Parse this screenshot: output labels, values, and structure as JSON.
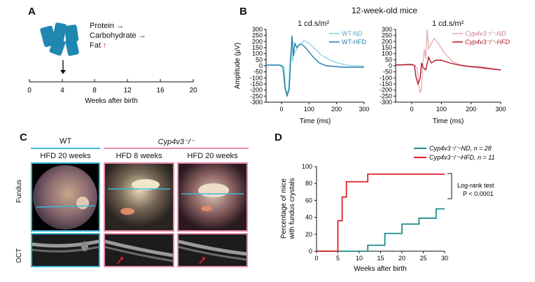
{
  "panels": {
    "a": "A",
    "b": "B",
    "c": "C",
    "d": "D"
  },
  "panel_a": {
    "nutrients": [
      {
        "label": "Protein",
        "arrow": "→",
        "arrow_color": "#000000"
      },
      {
        "label": "Carbohydrate",
        "arrow": "→",
        "arrow_color": "#000000"
      },
      {
        "label": "Fat",
        "arrow": "↑",
        "arrow_color": "#e0202a"
      }
    ],
    "timeline_ticks": [
      "0",
      "4",
      "8",
      "12",
      "16",
      "20"
    ],
    "xlabel": "Weeks after birth"
  },
  "panel_b": {
    "title": "12-week-old mice",
    "left": {
      "stimulus": "1 cd.s/m²",
      "legend": [
        {
          "name": "WT-ND",
          "color": "#8ecfe8"
        },
        {
          "name": "WT-HFD",
          "color": "#1e7fa8"
        }
      ],
      "ylabel": "Amplitude (µV)",
      "xlabel": "Time (ms)",
      "yticks": [
        "300",
        "250",
        "200",
        "150",
        "100",
        "50",
        "0",
        "-50",
        "-100",
        "-150",
        "-200",
        "-250",
        "-300"
      ],
      "xticks": [
        "0",
        "100",
        "200",
        "300"
      ]
    },
    "right": {
      "stimulus": "1 cd.s/m²",
      "legend": [
        {
          "name": "Cyp4v3⁻/⁻-ND",
          "color": "#e8a8b0"
        },
        {
          "name": "Cyp4v3⁻/⁻-HFD",
          "color": "#b0182a"
        }
      ],
      "xlabel": "Time (ms)",
      "yticks": [
        "300",
        "250",
        "200",
        "150",
        "100",
        "50",
        "0",
        "-50",
        "-100",
        "-150",
        "-200",
        "-250",
        "-300"
      ],
      "xticks": [
        "0",
        "100",
        "200",
        "300"
      ]
    }
  },
  "panel_c": {
    "group_wt": "WT",
    "group_ko": "Cyp4v3⁻/⁻",
    "columns": [
      "HFD 20 weeks",
      "HFD 8 weeks",
      "HFD 20 weeks"
    ],
    "row_fundus": "Fundus",
    "row_oct": "OCT",
    "wt_color": "#3fb8d8",
    "ko_color": "#e88aaa"
  },
  "panel_d": {
    "legend": [
      {
        "name": "Cyp4v3⁻/⁻-ND, n = 28",
        "color": "#1e8a8a"
      },
      {
        "name": "Cyp4v3⁻/⁻-HFD, n = 11",
        "color": "#e0202a"
      }
    ],
    "test_label": "Log-rank test",
    "p_value": "P < 0.0001",
    "ylabel_1": "Percentage of mice",
    "ylabel_2": "with fundus crystals",
    "xlabel": "Weeks after birth",
    "yticks": [
      "0",
      "20",
      "40",
      "60",
      "80",
      "100"
    ],
    "xticks": [
      "0",
      "5",
      "10",
      "15",
      "20",
      "25",
      "30"
    ],
    "chart_data": {
      "type": "line",
      "title": "",
      "xlabel": "Weeks after birth",
      "ylabel": "Percentage of mice with fundus crystals",
      "xlim": [
        0,
        30
      ],
      "ylim": [
        0,
        100
      ],
      "series": [
        {
          "name": "Cyp4v3-/--ND, n = 28",
          "x": [
            0,
            12,
            12,
            16,
            16,
            20,
            20,
            24,
            24,
            28,
            28,
            30
          ],
          "y": [
            0,
            0,
            7,
            7,
            21,
            21,
            32,
            32,
            39,
            39,
            50,
            50
          ]
        },
        {
          "name": "Cyp4v3-/--HFD, n = 11",
          "x": [
            0,
            5,
            5,
            6,
            6,
            7,
            7,
            12,
            12,
            30
          ],
          "y": [
            0,
            0,
            36,
            36,
            64,
            64,
            82,
            82,
            91,
            91
          ]
        }
      ]
    }
  }
}
